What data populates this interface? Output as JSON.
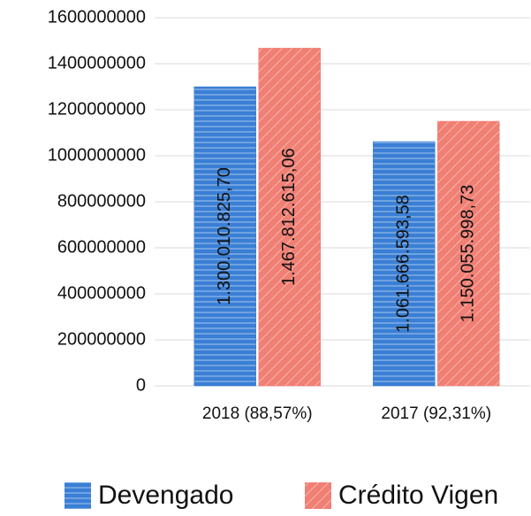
{
  "chart_data": {
    "type": "bar",
    "categories": [
      "2018 (88,57%)",
      "2017 (92,31%)"
    ],
    "series": [
      {
        "name": "Devengado",
        "color": "#3a7fd5",
        "values": [
          1300010825.7,
          1061666593.58
        ],
        "value_labels": [
          "1.300.010.825,70",
          "1.061.666.593,58"
        ]
      },
      {
        "name": "Crédito Vigen",
        "color": "#f07f74",
        "values": [
          1467812615.06,
          1150055998.73
        ],
        "value_labels": [
          "1.467.812.615,06",
          "1.150.055.998,73"
        ]
      }
    ],
    "ylim": [
      0,
      1600000000
    ],
    "yticks": [
      0,
      200000000,
      400000000,
      600000000,
      800000000,
      1000000000,
      1200000000,
      1400000000,
      1600000000
    ],
    "grid": true,
    "legend": "bottom"
  }
}
